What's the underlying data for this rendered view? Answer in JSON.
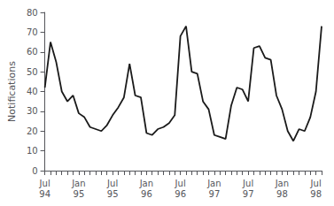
{
  "chart_data": {
    "type": "line",
    "ylabel": "Notifications",
    "categories": [
      "Jul\n94",
      null,
      null,
      null,
      null,
      null,
      "Jan\n95",
      null,
      null,
      null,
      null,
      null,
      "Jul\n95",
      null,
      null,
      null,
      null,
      null,
      "Jan\n96",
      null,
      null,
      null,
      null,
      null,
      "Jul\n96",
      null,
      null,
      null,
      null,
      null,
      "Jan\n97",
      null,
      null,
      null,
      null,
      null,
      "Jul\n97",
      null,
      null,
      null,
      null,
      null,
      "Jan\n98",
      null,
      null,
      null,
      null,
      null,
      "Jul\n98",
      null
    ],
    "values": [
      42,
      65,
      55,
      40,
      35,
      38,
      29,
      27,
      22,
      21,
      20,
      23,
      28,
      32,
      37,
      54,
      38,
      37,
      19,
      18,
      21,
      22,
      24,
      28,
      68,
      73,
      50,
      49,
      35,
      31,
      18,
      17,
      16,
      33,
      42,
      41,
      35,
      62,
      63,
      57,
      56,
      38,
      31,
      20,
      15,
      21,
      20,
      27,
      40,
      73
    ],
    "color": "#1a1a1a",
    "ylim": [
      0,
      80
    ],
    "yticks": [
      0,
      10,
      20,
      30,
      40,
      50,
      60,
      70,
      80
    ],
    "grid": false
  }
}
